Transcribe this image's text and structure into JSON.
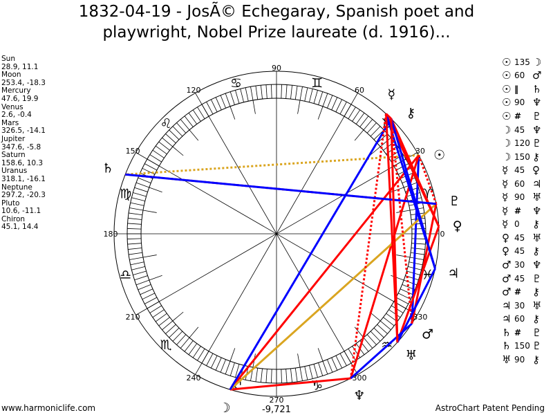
{
  "title": {
    "line1": "1832-04-19 - JosÃ© Echegaray, Spanish poet and",
    "line2": "playwright, Nobel Prize laureate (d. 1916)..."
  },
  "planets": [
    {
      "name": "Sun",
      "coords": "28.9, 11.1",
      "glyph": "☉"
    },
    {
      "name": "Moon",
      "coords": "253.4, -18.3",
      "glyph": "☽"
    },
    {
      "name": "Mercury",
      "coords": "47.6, 19.9",
      "glyph": "☿"
    },
    {
      "name": "Venus",
      "coords": "2.6, -0.4",
      "glyph": "♀"
    },
    {
      "name": "Mars",
      "coords": "326.5, -14.1",
      "glyph": "♂"
    },
    {
      "name": "Jupiter",
      "coords": "347.6, -5.8",
      "glyph": "♃"
    },
    {
      "name": "Saturn",
      "coords": "158.6, 10.3",
      "glyph": "♄"
    },
    {
      "name": "Uranus",
      "coords": "318.1, -16.1",
      "glyph": "♅"
    },
    {
      "name": "Neptune",
      "coords": "297.2, -20.3",
      "glyph": "♆"
    },
    {
      "name": "Pluto",
      "coords": "10.6, -11.1",
      "glyph": "♇"
    },
    {
      "name": "Chiron",
      "coords": "45.1, 14.4",
      "glyph": "⚷"
    }
  ],
  "aspects": [
    {
      "p1": "Sun",
      "type": "135",
      "p2": "Moon"
    },
    {
      "p1": "Sun",
      "type": "60",
      "p2": "Mars"
    },
    {
      "p1": "Sun",
      "type": "||",
      "p2": "Saturn"
    },
    {
      "p1": "Sun",
      "type": "90",
      "p2": "Neptune"
    },
    {
      "p1": "Sun",
      "type": "#",
      "p2": "Pluto"
    },
    {
      "p1": "Moon",
      "type": "45",
      "p2": "Neptune"
    },
    {
      "p1": "Moon",
      "type": "120",
      "p2": "Pluto"
    },
    {
      "p1": "Moon",
      "type": "150",
      "p2": "Chiron"
    },
    {
      "p1": "Mercury",
      "type": "45",
      "p2": "Venus"
    },
    {
      "p1": "Mercury",
      "type": "60",
      "p2": "Jupiter"
    },
    {
      "p1": "Mercury",
      "type": "90",
      "p2": "Uranus"
    },
    {
      "p1": "Mercury",
      "type": "#",
      "p2": "Neptune"
    },
    {
      "p1": "Mercury",
      "type": "0",
      "p2": "Chiron"
    },
    {
      "p1": "Venus",
      "type": "45",
      "p2": "Uranus"
    },
    {
      "p1": "Venus",
      "type": "45",
      "p2": "Chiron"
    },
    {
      "p1": "Mars",
      "type": "30",
      "p2": "Neptune"
    },
    {
      "p1": "Mars",
      "type": "45",
      "p2": "Pluto"
    },
    {
      "p1": "Mars",
      "type": "#",
      "p2": "Chiron"
    },
    {
      "p1": "Jupiter",
      "type": "30",
      "p2": "Uranus"
    },
    {
      "p1": "Jupiter",
      "type": "60",
      "p2": "Chiron"
    },
    {
      "p1": "Saturn",
      "type": "#",
      "p2": "Pluto"
    },
    {
      "p1": "Saturn",
      "type": "150",
      "p2": "Pluto"
    },
    {
      "p1": "Uranus",
      "type": "90",
      "p2": "Chiron"
    }
  ],
  "signs": [
    "♈",
    "♉",
    "♊",
    "♋",
    "♌",
    "♍",
    "♎",
    "♏",
    "♐",
    "♑",
    "♒",
    "♓"
  ],
  "degree_labels": [
    "0",
    "30",
    "60",
    "90",
    "120",
    "150",
    "180",
    "210",
    "240",
    "270",
    "300",
    "330"
  ],
  "score": "-9,721",
  "footer": {
    "site": "www.harmoniclife.com",
    "patent": "AstroChart Patent Pending"
  },
  "colors": {
    "hard": "#ff0000",
    "soft": "#0000ff",
    "trine": "#daa520",
    "parallel": "#daa520",
    "contraparallel": "#ff0000"
  }
}
